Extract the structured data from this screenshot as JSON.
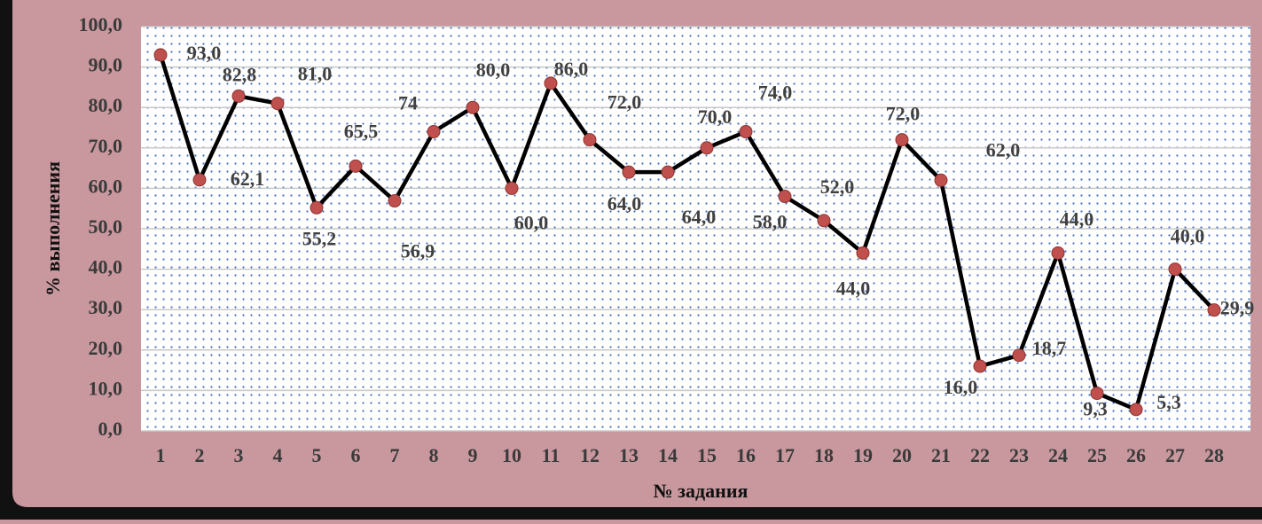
{
  "chart_data": {
    "type": "line",
    "x_label": "№ задания",
    "y_label": "% выполнения",
    "categories": [
      "1",
      "2",
      "3",
      "4",
      "5",
      "6",
      "7",
      "8",
      "9",
      "10",
      "11",
      "12",
      "13",
      "14",
      "15",
      "16",
      "17",
      "18",
      "19",
      "20",
      "21",
      "22",
      "23",
      "24",
      "25",
      "26",
      "27",
      "28"
    ],
    "series": [
      {
        "name": "% выполнения",
        "color": "#000000",
        "marker_color": "#c0504d",
        "values": [
          93.0,
          62.1,
          82.8,
          81.0,
          55.2,
          65.5,
          56.9,
          74,
          80.0,
          60.0,
          86.0,
          72.0,
          64.0,
          64.0,
          70.0,
          74.0,
          58.0,
          52.0,
          44.0,
          72.0,
          62.0,
          16.0,
          18.7,
          44.0,
          9.3,
          5.3,
          40.0,
          29.9
        ],
        "value_labels": [
          "93,0",
          "62,1",
          "82,8",
          "81,0",
          "55,2",
          "65,5",
          "56,9",
          "74",
          "80,0",
          "60,0",
          "86,0",
          "72,0",
          "64,0",
          "64,0",
          "70,0",
          "74,0",
          "58,0",
          "52,0",
          "44,0",
          "72,0",
          "62,0",
          "16,0",
          "18,7",
          "44,0",
          "9,3",
          "5,3",
          "40,0",
          "29,9"
        ]
      }
    ],
    "ylim": [
      0,
      100
    ],
    "yticks": [
      {
        "value": 0,
        "label": "0,0"
      },
      {
        "value": 10,
        "label": "10,0"
      },
      {
        "value": 20,
        "label": "20,0"
      },
      {
        "value": 30,
        "label": "30,0"
      },
      {
        "value": 40,
        "label": "40,0"
      },
      {
        "value": 50,
        "label": "50,0"
      },
      {
        "value": 60,
        "label": "60,0"
      },
      {
        "value": 70,
        "label": "70,0"
      },
      {
        "value": 80,
        "label": "80,0"
      },
      {
        "value": 90,
        "label": "90,0"
      },
      {
        "value": 100,
        "label": "100,0"
      }
    ],
    "grid": true
  }
}
